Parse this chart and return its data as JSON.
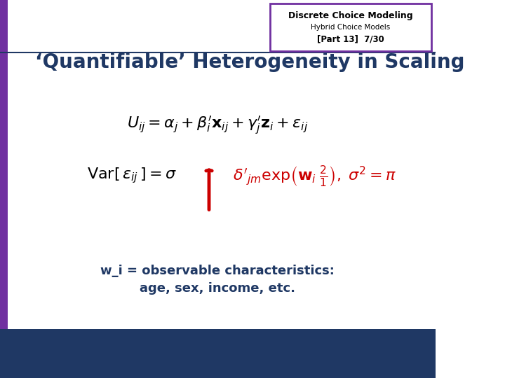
{
  "title_main": "Discrete Choice Modeling",
  "title_sub1": "Hybrid Choice Models",
  "title_sub2": "[Part 13]  7/30",
  "slide_title": "‘Quantifiable’ Heterogeneity in Scaling",
  "eq1": "U_{ij} = \\alpha_j + \\beta_i'\\mathbf{x}_{ij} + \\gamma_j'\\mathbf{z}_i + \\varepsilon_{ij}",
  "eq2_left": "Var[\\,\\varepsilon_{ij}\\,]= \\sigma",
  "eq2_mid": "\\delta'_{jm}(",
  "eq2_exp": "\\exp(",
  "eq2_right": "\\frac{2}{1}),\\, \\sigma^{\\,2}= \\pi",
  "annotation": "w_i = observable characteristics:\nage, sex, income, etc.",
  "bg_color": "#ffffff",
  "header_bg": "#ffffff",
  "header_border": "#7030a0",
  "left_bar_color": "#7030a0",
  "bottom_bar_color": "#1f3864",
  "title_color": "#000000",
  "slide_title_color": "#1f3864",
  "eq_color": "#000000",
  "annotation_color": "#1f3864",
  "arrow_color": "#cc0000",
  "eq2_highlight_color": "#cc0000"
}
